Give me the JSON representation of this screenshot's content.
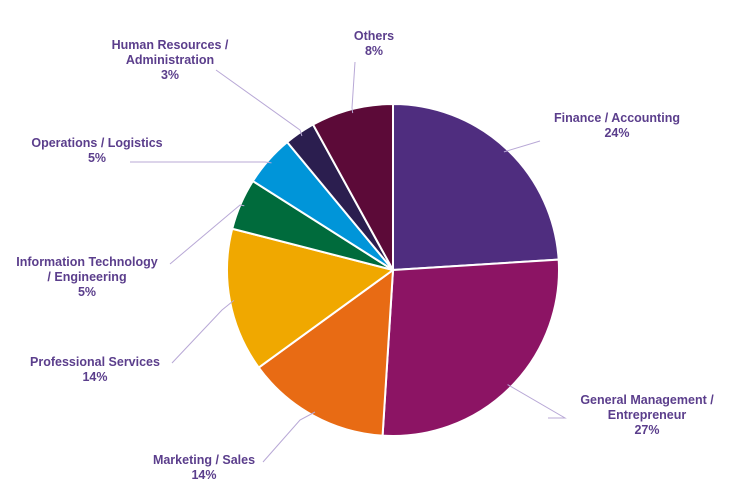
{
  "chart_data": {
    "type": "pie",
    "title": "",
    "slices": [
      {
        "label": [
          "Finance / Accounting"
        ],
        "value": 24,
        "pct_label": "24%",
        "color": "#4f2d7f"
      },
      {
        "label": [
          "General Management /",
          "Entrepreneur"
        ],
        "value": 27,
        "pct_label": "27%",
        "color": "#8c1464"
      },
      {
        "label": [
          "Marketing / Sales"
        ],
        "value": 14,
        "pct_label": "14%",
        "color": "#e86b14"
      },
      {
        "label": [
          "Professional  Services"
        ],
        "value": 14,
        "pct_label": "14%",
        "color": "#f0a800"
      },
      {
        "label": [
          "Information Technology",
          "/ Engineering"
        ],
        "value": 5,
        "pct_label": "5%",
        "color": "#006b3c"
      },
      {
        "label": [
          "Operations / Logistics"
        ],
        "value": 5,
        "pct_label": "5%",
        "color": "#0095d9"
      },
      {
        "label": [
          "Human Resources /",
          "Administration"
        ],
        "value": 3,
        "pct_label": "3%",
        "color": "#2b1e4f"
      },
      {
        "label": [
          "Others"
        ],
        "value": 8,
        "pct_label": "8%",
        "color": "#5c0a38"
      }
    ],
    "label_color": "#5b3e8c",
    "leader_line_color": "#b8a8d6",
    "legend": "none"
  }
}
